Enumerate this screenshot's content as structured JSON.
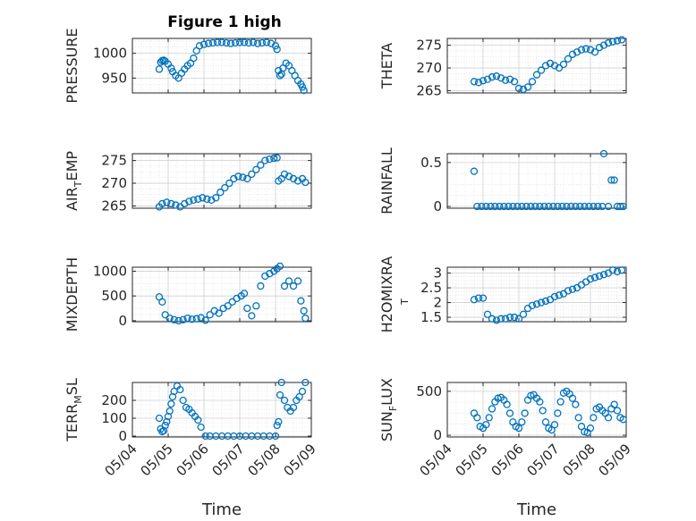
{
  "figure": {
    "title": "Figure 1 high",
    "marker_color": "#0072BD"
  },
  "chart_data": [
    {
      "type": "scatter",
      "title": "Figure 1 high",
      "ylabel": "PRESSURE",
      "xlim": [
        "05/04",
        "05/09"
      ],
      "ylim": [
        920,
        1030
      ],
      "yticks": [
        950,
        1000
      ],
      "x_ticks": [
        "05/04",
        "05/05",
        "05/06",
        "05/07",
        "05/08",
        "05/09"
      ],
      "series": [
        {
          "x": [
            "05/04 18:00",
            "05/04 19:00",
            "05/04 20:00",
            "05/04 21:00",
            "05/04 22:00",
            "05/05 00:00",
            "05/05 02:00",
            "05/05 03:00",
            "05/05 05:00",
            "05/05 07:00",
            "05/05 09:00",
            "05/05 11:00",
            "05/05 13:00",
            "05/05 15:00",
            "05/05 17:00",
            "05/05 19:00",
            "05/05 21:00",
            "05/06 00:00",
            "05/06 03:00",
            "05/06 06:00",
            "05/06 09:00",
            "05/06 12:00",
            "05/06 15:00",
            "05/06 18:00",
            "05/06 21:00",
            "05/07 00:00",
            "05/07 03:00",
            "05/07 06:00",
            "05/07 09:00",
            "05/07 12:00",
            "05/07 15:00",
            "05/07 18:00",
            "05/07 21:00",
            "05/08 00:00",
            "05/08 01:00",
            "05/08 02:00",
            "05/08 03:00",
            "05/08 04:00",
            "05/08 05:00",
            "05/08 07:00",
            "05/08 09:00",
            "05/08 11:00",
            "05/08 13:00",
            "05/08 15:00",
            "05/08 17:00",
            "05/08 18:00",
            "05/08 19:00"
          ],
          "y": [
            968,
            982,
            985,
            986,
            984,
            978,
            970,
            963,
            955,
            950,
            960,
            968,
            975,
            980,
            990,
            1005,
            1015,
            1018,
            1020,
            1021,
            1022,
            1022,
            1021,
            1020,
            1021,
            1022,
            1022,
            1021,
            1022,
            1020,
            1021,
            1022,
            1020,
            1015,
            1008,
            965,
            955,
            958,
            970,
            980,
            975,
            965,
            955,
            945,
            938,
            932,
            925
          ]
        }
      ]
    },
    {
      "type": "scatter",
      "ylabel": "THETA",
      "xlim": [
        "05/04",
        "05/09"
      ],
      "ylim": [
        264.5,
        276.5
      ],
      "yticks": [
        265,
        270,
        275
      ],
      "x_ticks": [
        "05/04",
        "05/05",
        "05/06",
        "05/07",
        "05/08",
        "05/09"
      ],
      "series": [
        {
          "x": [
            "05/04 18:00",
            "05/04 21:00",
            "05/05 00:00",
            "05/05 03:00",
            "05/05 06:00",
            "05/05 09:00",
            "05/05 12:00",
            "05/05 15:00",
            "05/05 18:00",
            "05/05 21:00",
            "05/06 00:00",
            "05/06 03:00",
            "05/06 06:00",
            "05/06 09:00",
            "05/06 12:00",
            "05/06 15:00",
            "05/06 18:00",
            "05/06 21:00",
            "05/07 00:00",
            "05/07 03:00",
            "05/07 06:00",
            "05/07 09:00",
            "05/07 12:00",
            "05/07 15:00",
            "05/07 18:00",
            "05/07 21:00",
            "05/08 00:00",
            "05/08 03:00",
            "05/08 06:00",
            "05/08 09:00",
            "05/08 12:00",
            "05/08 15:00",
            "05/08 18:00",
            "05/08 21:00"
          ],
          "y": [
            267,
            266.8,
            267.2,
            267.5,
            268,
            268.2,
            267.8,
            267.3,
            267.5,
            267,
            265.5,
            265.3,
            265.8,
            267,
            268.5,
            269.5,
            270.5,
            271,
            270.5,
            270,
            270.8,
            272,
            273,
            273.5,
            274,
            274.2,
            274,
            273.5,
            274.5,
            275,
            275.5,
            275.8,
            276,
            276.2
          ]
        }
      ]
    },
    {
      "type": "scatter",
      "ylabel": "AIR_TEMP",
      "ylabel_parts": [
        "AIR",
        "T",
        "EMP"
      ],
      "xlim": [
        "05/04",
        "05/09"
      ],
      "ylim": [
        264.5,
        276.5
      ],
      "yticks": [
        265,
        270,
        275
      ],
      "x_ticks": [
        "05/04",
        "05/05",
        "05/06",
        "05/07",
        "05/08",
        "05/09"
      ],
      "series": [
        {
          "x": [
            "05/04 18:00",
            "05/04 20:00",
            "05/04 23:00",
            "05/05 02:00",
            "05/05 05:00",
            "05/05 08:00",
            "05/05 11:00",
            "05/05 14:00",
            "05/05 17:00",
            "05/05 20:00",
            "05/05 23:00",
            "05/06 02:00",
            "05/06 05:00",
            "05/06 08:00",
            "05/06 11:00",
            "05/06 14:00",
            "05/06 17:00",
            "05/06 20:00",
            "05/06 23:00",
            "05/07 02:00",
            "05/07 05:00",
            "05/07 08:00",
            "05/07 11:00",
            "05/07 14:00",
            "05/07 17:00",
            "05/07 20:00",
            "05/07 23:00",
            "05/08 01:00",
            "05/08 02:00",
            "05/08 04:00",
            "05/08 06:00",
            "05/08 09:00",
            "05/08 12:00",
            "05/08 15:00",
            "05/08 18:00",
            "05/08 20:00"
          ],
          "y": [
            264.8,
            265.5,
            265.8,
            265.5,
            265.2,
            264.8,
            265.5,
            266,
            266.3,
            266.5,
            266.8,
            266.5,
            266.3,
            266.8,
            268,
            269,
            270,
            271,
            271.5,
            271.3,
            271,
            272,
            273,
            274,
            275,
            275.3,
            275.5,
            275.6,
            270.5,
            271,
            272,
            271.5,
            271,
            270.5,
            271,
            270.2
          ]
        }
      ]
    },
    {
      "type": "scatter",
      "ylabel": "RAINFALL",
      "xlim": [
        "05/04",
        "05/09"
      ],
      "ylim": [
        -0.02,
        0.6
      ],
      "yticks": [
        0,
        0.5
      ],
      "x_ticks": [
        "05/04",
        "05/05",
        "05/06",
        "05/07",
        "05/08",
        "05/09"
      ],
      "series": [
        {
          "x": [
            "05/04 18:00",
            "05/04 20:00",
            "05/04 23:00",
            "05/05 02:00",
            "05/05 05:00",
            "05/05 08:00",
            "05/05 11:00",
            "05/05 14:00",
            "05/05 17:00",
            "05/05 20:00",
            "05/05 23:00",
            "05/06 02:00",
            "05/06 05:00",
            "05/06 08:00",
            "05/06 11:00",
            "05/06 14:00",
            "05/06 17:00",
            "05/06 20:00",
            "05/06 23:00",
            "05/07 02:00",
            "05/07 05:00",
            "05/07 08:00",
            "05/07 11:00",
            "05/07 14:00",
            "05/07 17:00",
            "05/07 20:00",
            "05/07 23:00",
            "05/08 02:00",
            "05/08 05:00",
            "05/08 08:00",
            "05/08 09:00",
            "05/08 12:00",
            "05/08 14:00",
            "05/08 16:00",
            "05/08 18:00",
            "05/08 20:00",
            "05/08 22:00"
          ],
          "y": [
            0.4,
            0,
            0,
            0,
            0,
            0,
            0,
            0,
            0,
            0,
            0,
            0,
            0,
            0,
            0,
            0,
            0,
            0,
            0,
            0,
            0,
            0,
            0,
            0,
            0,
            0,
            0,
            0,
            0,
            0,
            0.6,
            0,
            0.3,
            0.3,
            0,
            0,
            0
          ]
        }
      ]
    },
    {
      "type": "scatter",
      "ylabel": "MIXDEPTH",
      "xlim": [
        "05/04",
        "05/09"
      ],
      "ylim": [
        -20,
        1080
      ],
      "yticks": [
        0,
        500,
        1000
      ],
      "x_ticks": [
        "05/04",
        "05/05",
        "05/06",
        "05/07",
        "05/08",
        "05/09"
      ],
      "series": [
        {
          "x": [
            "05/04 18:00",
            "05/04 20:00",
            "05/04 22:00",
            "05/05 01:00",
            "05/05 04:00",
            "05/05 07:00",
            "05/05 10:00",
            "05/05 13:00",
            "05/05 16:00",
            "05/05 19:00",
            "05/05 22:00",
            "05/06 01:00",
            "05/06 04:00",
            "05/06 07:00",
            "05/06 10:00",
            "05/06 13:00",
            "05/06 16:00",
            "05/06 19:00",
            "05/06 22:00",
            "05/07 01:00",
            "05/07 03:00",
            "05/07 05:00",
            "05/07 08:00",
            "05/07 11:00",
            "05/07 14:00",
            "05/07 17:00",
            "05/07 20:00",
            "05/07 23:00",
            "05/08 01:00",
            "05/08 03:00",
            "05/08 06:00",
            "05/08 09:00",
            "05/08 12:00",
            "05/08 15:00",
            "05/08 17:00",
            "05/08 19:00",
            "05/08 20:00"
          ],
          "y": [
            480,
            380,
            120,
            50,
            20,
            0,
            20,
            50,
            30,
            40,
            60,
            10,
            120,
            200,
            150,
            250,
            300,
            380,
            450,
            500,
            550,
            250,
            100,
            300,
            700,
            900,
            950,
            1000,
            1050,
            1100,
            700,
            800,
            700,
            800,
            400,
            200,
            50
          ]
        }
      ]
    },
    {
      "type": "scatter",
      "ylabel": "H2OMIXRA",
      "ylabel_subscript": "T",
      "xlim": [
        "05/04",
        "05/09"
      ],
      "ylim": [
        1.35,
        3.2
      ],
      "yticks": [
        1.5,
        2,
        2.5,
        3
      ],
      "x_ticks": [
        "05/04",
        "05/05",
        "05/06",
        "05/07",
        "05/08",
        "05/09"
      ],
      "series": [
        {
          "x": [
            "05/04 18:00",
            "05/04 21:00",
            "05/05 00:00",
            "05/05 03:00",
            "05/05 06:00",
            "05/05 09:00",
            "05/05 12:00",
            "05/05 15:00",
            "05/05 18:00",
            "05/05 21:00",
            "05/06 00:00",
            "05/06 03:00",
            "05/06 06:00",
            "05/06 09:00",
            "05/06 12:00",
            "05/06 15:00",
            "05/06 18:00",
            "05/06 21:00",
            "05/07 00:00",
            "05/07 03:00",
            "05/07 06:00",
            "05/07 09:00",
            "05/07 12:00",
            "05/07 15:00",
            "05/07 18:00",
            "05/07 21:00",
            "05/08 00:00",
            "05/08 03:00",
            "05/08 06:00",
            "05/08 09:00",
            "05/08 12:00",
            "05/08 15:00",
            "05/08 18:00",
            "05/08 21:00"
          ],
          "y": [
            2.1,
            2.15,
            2.15,
            1.6,
            1.45,
            1.4,
            1.45,
            1.45,
            1.5,
            1.5,
            1.45,
            1.6,
            1.8,
            1.9,
            1.95,
            2,
            2.05,
            2.1,
            2.2,
            2.25,
            2.3,
            2.4,
            2.45,
            2.5,
            2.6,
            2.7,
            2.8,
            2.85,
            2.9,
            2.95,
            3,
            3.1,
            3.05,
            3.1
          ]
        }
      ]
    },
    {
      "type": "scatter",
      "ylabel": "TERR_MSL",
      "ylabel_parts": [
        "TERR",
        "M",
        "SL"
      ],
      "xlabel": "Time",
      "xlim": [
        "05/04",
        "05/09"
      ],
      "ylim": [
        -5,
        300
      ],
      "yticks": [
        0,
        100,
        200
      ],
      "x_ticks": [
        "05/04",
        "05/05",
        "05/06",
        "05/07",
        "05/08",
        "05/09"
      ],
      "series": [
        {
          "x": [
            "05/04 18:00",
            "05/04 19:00",
            "05/04 20:00",
            "05/04 21:00",
            "05/04 22:00",
            "05/04 23:00",
            "05/05 00:00",
            "05/05 01:00",
            "05/05 02:00",
            "05/05 03:00",
            "05/05 04:00",
            "05/05 06:00",
            "05/05 08:00",
            "05/05 10:00",
            "05/05 12:00",
            "05/05 14:00",
            "05/05 16:00",
            "05/05 18:00",
            "05/05 20:00",
            "05/05 22:00",
            "05/06 01:00",
            "05/06 04:00",
            "05/06 08:00",
            "05/06 12:00",
            "05/06 16:00",
            "05/06 20:00",
            "05/07 00:00",
            "05/07 04:00",
            "05/07 08:00",
            "05/07 12:00",
            "05/07 16:00",
            "05/07 20:00",
            "05/08 00:00",
            "05/08 01:00",
            "05/08 02:00",
            "05/08 03:00",
            "05/08 04:00",
            "05/08 06:00",
            "05/08 08:00",
            "05/08 10:00",
            "05/08 12:00",
            "05/08 14:00",
            "05/08 16:00",
            "05/08 18:00",
            "05/08 20:00"
          ],
          "y": [
            100,
            40,
            25,
            30,
            60,
            80,
            110,
            140,
            180,
            220,
            250,
            280,
            260,
            200,
            160,
            150,
            130,
            110,
            90,
            50,
            0,
            0,
            0,
            0,
            0,
            0,
            0,
            0,
            0,
            0,
            0,
            0,
            0,
            60,
            80,
            230,
            300,
            200,
            160,
            140,
            160,
            200,
            220,
            250,
            300
          ]
        }
      ]
    },
    {
      "type": "scatter",
      "ylabel": "SUN_FLUX",
      "ylabel_parts": [
        "SUN",
        "F",
        "LUX"
      ],
      "xlabel": "Time",
      "xlim": [
        "05/04",
        "05/09"
      ],
      "ylim": [
        -20,
        600
      ],
      "yticks": [
        0,
        500
      ],
      "x_ticks": [
        "05/04",
        "05/05",
        "05/06",
        "05/07",
        "05/08",
        "05/09"
      ],
      "series": [
        {
          "x": [
            "05/04 18:00",
            "05/04 20:00",
            "05/04 22:00",
            "05/05 00:00",
            "05/05 02:00",
            "05/05 04:00",
            "05/05 06:00",
            "05/05 08:00",
            "05/05 10:00",
            "05/05 12:00",
            "05/05 14:00",
            "05/05 16:00",
            "05/05 18:00",
            "05/05 20:00",
            "05/05 22:00",
            "05/06 00:00",
            "05/06 02:00",
            "05/06 04:00",
            "05/06 06:00",
            "05/06 08:00",
            "05/06 10:00",
            "05/06 12:00",
            "05/06 14:00",
            "05/06 16:00",
            "05/06 18:00",
            "05/06 20:00",
            "05/06 22:00",
            "05/07 00:00",
            "05/07 02:00",
            "05/07 04:00",
            "05/07 06:00",
            "05/07 08:00",
            "05/07 10:00",
            "05/07 12:00",
            "05/07 14:00",
            "05/07 16:00",
            "05/07 18:00",
            "05/07 20:00",
            "05/07 22:00",
            "05/08 00:00",
            "05/08 02:00",
            "05/08 04:00",
            "05/08 06:00",
            "05/08 08:00",
            "05/08 10:00",
            "05/08 12:00",
            "05/08 14:00",
            "05/08 16:00",
            "05/08 18:00",
            "05/08 20:00",
            "05/08 22:00"
          ],
          "y": [
            250,
            200,
            100,
            80,
            120,
            200,
            300,
            380,
            420,
            430,
            400,
            350,
            250,
            150,
            100,
            80,
            150,
            250,
            400,
            450,
            460,
            420,
            380,
            280,
            150,
            80,
            60,
            120,
            250,
            380,
            480,
            500,
            470,
            420,
            350,
            200,
            100,
            40,
            30,
            80,
            200,
            300,
            320,
            280,
            250,
            200,
            300,
            350,
            280,
            200,
            180
          ]
        }
      ]
    }
  ]
}
